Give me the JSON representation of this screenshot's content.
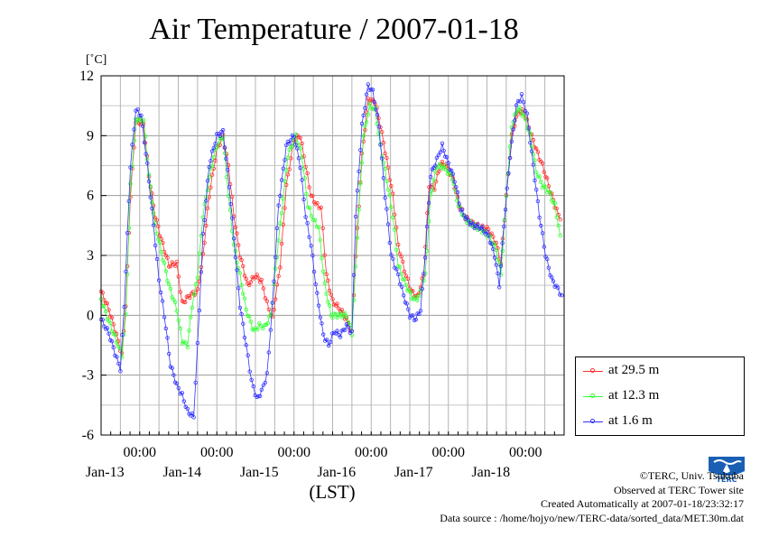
{
  "chart_data": {
    "type": "line",
    "title": "Air Temperature / 2007-01-18",
    "ylabel": "[˚C]",
    "xlabel": "(LST)",
    "ylim": [
      -6,
      12
    ],
    "yticks": [
      -6,
      -3,
      0,
      3,
      6,
      9,
      12
    ],
    "xlim": [
      0,
      6
    ],
    "x_unit": "days (Jan-12 12:00 LST = 0)",
    "xticks": [
      {
        "x": 0.5,
        "time": "00:00",
        "date": "Jan-13"
      },
      {
        "x": 1.5,
        "time": "00:00",
        "date": "Jan-14"
      },
      {
        "x": 2.5,
        "time": "00:00",
        "date": "Jan-15"
      },
      {
        "x": 3.5,
        "time": "00:00",
        "date": "Jan-16"
      },
      {
        "x": 4.5,
        "time": "00:00",
        "date": "Jan-17"
      },
      {
        "x": 5.5,
        "time": "00:00",
        "date": "Jan-18"
      }
    ],
    "grid": true,
    "legend_position": "right-bottom",
    "series": [
      {
        "name": "at 29.5 m",
        "color": "#ff3030",
        "points": [
          [
            0,
            1.2
          ],
          [
            0.1,
            0.3
          ],
          [
            0.2,
            -1.0
          ],
          [
            0.27,
            -2.0
          ],
          [
            0.32,
            0.5
          ],
          [
            0.38,
            6.0
          ],
          [
            0.45,
            9.7
          ],
          [
            0.55,
            9.6
          ],
          [
            0.62,
            7.0
          ],
          [
            0.7,
            5.0
          ],
          [
            0.78,
            3.8
          ],
          [
            0.88,
            2.5
          ],
          [
            0.98,
            2.6
          ],
          [
            1.05,
            0.6
          ],
          [
            1.15,
            1.0
          ],
          [
            1.25,
            1.2
          ],
          [
            1.32,
            3.0
          ],
          [
            1.4,
            6.0
          ],
          [
            1.5,
            8.3
          ],
          [
            1.58,
            9.0
          ],
          [
            1.65,
            7.5
          ],
          [
            1.72,
            5.0
          ],
          [
            1.8,
            3.0
          ],
          [
            1.9,
            1.5
          ],
          [
            2.0,
            2.0
          ],
          [
            2.08,
            1.7
          ],
          [
            2.15,
            0.6
          ],
          [
            2.22,
            -0.2
          ],
          [
            2.32,
            2.5
          ],
          [
            2.4,
            6.5
          ],
          [
            2.5,
            8.8
          ],
          [
            2.58,
            9.0
          ],
          [
            2.65,
            7.5
          ],
          [
            2.72,
            6.0
          ],
          [
            2.8,
            5.5
          ],
          [
            2.85,
            5.4
          ],
          [
            2.92,
            2.0
          ],
          [
            3.0,
            0.7
          ],
          [
            3.1,
            0.3
          ],
          [
            3.18,
            -0.2
          ],
          [
            3.25,
            -0.9
          ],
          [
            3.3,
            3.0
          ],
          [
            3.38,
            8.0
          ],
          [
            3.46,
            10.8
          ],
          [
            3.55,
            10.7
          ],
          [
            3.62,
            9.5
          ],
          [
            3.7,
            7.8
          ],
          [
            3.78,
            6.0
          ],
          [
            3.85,
            3.5
          ],
          [
            3.95,
            2.0
          ],
          [
            4.02,
            1.2
          ],
          [
            4.1,
            0.9
          ],
          [
            4.18,
            2.0
          ],
          [
            4.25,
            6.5
          ],
          [
            4.32,
            6.4
          ],
          [
            4.4,
            7.6
          ],
          [
            4.48,
            7.5
          ],
          [
            4.56,
            6.8
          ],
          [
            4.64,
            5.5
          ],
          [
            4.72,
            4.9
          ],
          [
            4.82,
            4.6
          ],
          [
            4.92,
            4.4
          ],
          [
            5.02,
            4.3
          ],
          [
            5.12,
            3.6
          ],
          [
            5.18,
            2.6
          ],
          [
            5.25,
            6.0
          ],
          [
            5.32,
            9.0
          ],
          [
            5.4,
            10.2
          ],
          [
            5.48,
            10.2
          ],
          [
            5.56,
            9.2
          ],
          [
            5.64,
            8.3
          ],
          [
            5.72,
            7.5
          ],
          [
            5.8,
            6.5
          ],
          [
            5.88,
            5.5
          ],
          [
            5.95,
            4.8
          ]
        ]
      },
      {
        "name": "at 12.3 m",
        "color": "#33ff33",
        "points": [
          [
            0,
            0.8
          ],
          [
            0.1,
            -0.3
          ],
          [
            0.2,
            -1.3
          ],
          [
            0.27,
            -2.0
          ],
          [
            0.32,
            0.0
          ],
          [
            0.38,
            6.5
          ],
          [
            0.45,
            9.8
          ],
          [
            0.55,
            9.8
          ],
          [
            0.62,
            7.0
          ],
          [
            0.7,
            4.5
          ],
          [
            0.78,
            3.2
          ],
          [
            0.88,
            1.5
          ],
          [
            0.98,
            0.3
          ],
          [
            1.05,
            -1.3
          ],
          [
            1.12,
            -1.5
          ],
          [
            1.18,
            0.5
          ],
          [
            1.25,
            2.0
          ],
          [
            1.32,
            5.0
          ],
          [
            1.42,
            7.3
          ],
          [
            1.5,
            8.5
          ],
          [
            1.58,
            9.0
          ],
          [
            1.65,
            6.0
          ],
          [
            1.72,
            3.5
          ],
          [
            1.8,
            2.0
          ],
          [
            1.88,
            0.3
          ],
          [
            1.98,
            -0.8
          ],
          [
            2.05,
            -0.5
          ],
          [
            2.12,
            -0.6
          ],
          [
            2.2,
            0.0
          ],
          [
            2.32,
            4.5
          ],
          [
            2.42,
            8.0
          ],
          [
            2.52,
            9.0
          ],
          [
            2.6,
            8.0
          ],
          [
            2.68,
            5.5
          ],
          [
            2.75,
            4.8
          ],
          [
            2.82,
            4.4
          ],
          [
            2.9,
            1.5
          ],
          [
            2.98,
            0.0
          ],
          [
            3.08,
            0.0
          ],
          [
            3.18,
            0.0
          ],
          [
            3.25,
            -0.9
          ],
          [
            3.32,
            4.0
          ],
          [
            3.4,
            9.0
          ],
          [
            3.48,
            10.5
          ],
          [
            3.55,
            10.3
          ],
          [
            3.62,
            8.5
          ],
          [
            3.7,
            6.8
          ],
          [
            3.78,
            5.0
          ],
          [
            3.85,
            2.5
          ],
          [
            3.95,
            1.5
          ],
          [
            4.05,
            0.8
          ],
          [
            4.12,
            0.9
          ],
          [
            4.2,
            2.0
          ],
          [
            4.27,
            6.0
          ],
          [
            4.35,
            7.5
          ],
          [
            4.45,
            7.4
          ],
          [
            4.55,
            6.9
          ],
          [
            4.63,
            5.5
          ],
          [
            4.72,
            4.8
          ],
          [
            4.82,
            4.5
          ],
          [
            4.92,
            4.3
          ],
          [
            5.02,
            4.0
          ],
          [
            5.12,
            3.3
          ],
          [
            5.18,
            2.0
          ],
          [
            5.25,
            6.0
          ],
          [
            5.32,
            9.5
          ],
          [
            5.4,
            10.4
          ],
          [
            5.48,
            10.0
          ],
          [
            5.56,
            9.0
          ],
          [
            5.64,
            7.2
          ],
          [
            5.72,
            6.5
          ],
          [
            5.8,
            6.2
          ],
          [
            5.88,
            5.5
          ],
          [
            5.95,
            4.0
          ]
        ]
      },
      {
        "name": "at 1.6 m",
        "color": "#3333ff",
        "points": [
          [
            0,
            -0.2
          ],
          [
            0.1,
            -0.9
          ],
          [
            0.18,
            -1.9
          ],
          [
            0.25,
            -2.7
          ],
          [
            0.3,
            0.5
          ],
          [
            0.38,
            7.5
          ],
          [
            0.45,
            10.3
          ],
          [
            0.52,
            10.0
          ],
          [
            0.6,
            7.5
          ],
          [
            0.68,
            4.5
          ],
          [
            0.75,
            1.8
          ],
          [
            0.82,
            0.0
          ],
          [
            0.9,
            -2.5
          ],
          [
            0.98,
            -3.5
          ],
          [
            1.05,
            -4.0
          ],
          [
            1.12,
            -4.8
          ],
          [
            1.2,
            -5.1
          ],
          [
            1.25,
            -1.5
          ],
          [
            1.32,
            4.0
          ],
          [
            1.4,
            7.5
          ],
          [
            1.5,
            9.0
          ],
          [
            1.58,
            9.2
          ],
          [
            1.66,
            6.5
          ],
          [
            1.74,
            3.0
          ],
          [
            1.8,
            0.5
          ],
          [
            1.88,
            -1.5
          ],
          [
            1.95,
            -3.3
          ],
          [
            2.02,
            -4.2
          ],
          [
            2.08,
            -3.8
          ],
          [
            2.15,
            -3.0
          ],
          [
            2.22,
            0.5
          ],
          [
            2.3,
            5.5
          ],
          [
            2.4,
            8.5
          ],
          [
            2.5,
            9.0
          ],
          [
            2.58,
            7.5
          ],
          [
            2.65,
            5.0
          ],
          [
            2.72,
            3.5
          ],
          [
            2.8,
            1.0
          ],
          [
            2.88,
            -1.0
          ],
          [
            2.95,
            -1.5
          ],
          [
            3.02,
            -0.8
          ],
          [
            3.1,
            -1.0
          ],
          [
            3.18,
            -0.5
          ],
          [
            3.25,
            -0.9
          ],
          [
            3.3,
            5.0
          ],
          [
            3.38,
            9.5
          ],
          [
            3.46,
            11.5
          ],
          [
            3.52,
            11.2
          ],
          [
            3.6,
            9.5
          ],
          [
            3.68,
            6.0
          ],
          [
            3.76,
            3.0
          ],
          [
            3.85,
            2.0
          ],
          [
            3.92,
            1.0
          ],
          [
            4.0,
            0.0
          ],
          [
            4.08,
            -0.2
          ],
          [
            4.14,
            0.3
          ],
          [
            4.2,
            3.0
          ],
          [
            4.27,
            7.0
          ],
          [
            4.35,
            7.8
          ],
          [
            4.42,
            8.5
          ],
          [
            4.5,
            7.6
          ],
          [
            4.58,
            6.8
          ],
          [
            4.66,
            5.3
          ],
          [
            4.74,
            4.8
          ],
          [
            4.82,
            4.5
          ],
          [
            4.92,
            4.4
          ],
          [
            5.02,
            4.0
          ],
          [
            5.1,
            3.0
          ],
          [
            5.16,
            1.5
          ],
          [
            5.22,
            4.5
          ],
          [
            5.3,
            8.0
          ],
          [
            5.38,
            10.5
          ],
          [
            5.45,
            11.0
          ],
          [
            5.52,
            10.0
          ],
          [
            5.6,
            7.5
          ],
          [
            5.68,
            5.0
          ],
          [
            5.76,
            3.0
          ],
          [
            5.84,
            1.8
          ],
          [
            5.92,
            1.3
          ],
          [
            5.97,
            1.0
          ]
        ]
      }
    ]
  },
  "footer": {
    "credit": "©TERC, Univ. Tsukuba",
    "site": "Observed at TERC Tower site",
    "created": "Created Automatically at 2007-01-18/23:32:17",
    "source": "Data source : /home/hojyo/new/TERC-data/sorted_data/MET.30m.dat"
  },
  "logo": {
    "text": "TERC",
    "color": "#1a5fb4"
  }
}
